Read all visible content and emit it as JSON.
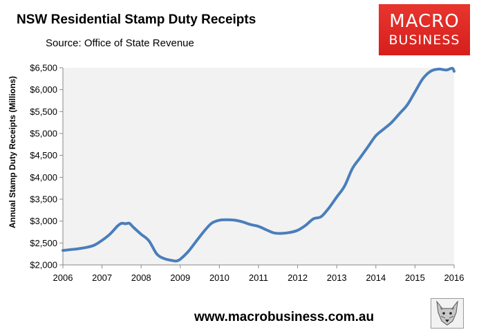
{
  "header": {
    "title": "NSW Residential Stamp Duty Receipts",
    "source": "Source: Office of State Revenue"
  },
  "logo": {
    "line1": "MACRO",
    "line2": "BUSINESS",
    "background": "#d92320"
  },
  "footer": {
    "url": "www.macrobusiness.com.au",
    "mascot_icon": "wolf-head-icon"
  },
  "chart_data": {
    "type": "line",
    "title": "NSW Residential Stamp Duty Receipts",
    "subtitle": "Source: Office of State Revenue",
    "xlabel": "",
    "ylabel": "Annual Stamp Duty Receipts (Millions)",
    "xlim": [
      2006,
      2016
    ],
    "ylim": [
      2000,
      6500
    ],
    "x_ticks": [
      "2006",
      "2007",
      "2008",
      "2009",
      "2010",
      "2011",
      "2012",
      "2013",
      "2014",
      "2015",
      "2016"
    ],
    "y_ticks": [
      "$2,000",
      "$2,500",
      "$3,000",
      "$3,500",
      "$4,000",
      "$4,500",
      "$5,000",
      "$5,500",
      "$6,000",
      "$6,500"
    ],
    "grid": false,
    "plot_background": "#f2f2f2",
    "line_color": "#4a7ebb",
    "series": [
      {
        "x": [
          2006.0,
          2006.2,
          2006.4,
          2006.6,
          2006.8,
          2007.0,
          2007.2,
          2007.4,
          2007.5,
          2007.6,
          2007.7,
          2007.8,
          2008.0,
          2008.2,
          2008.4,
          2008.6,
          2008.8,
          2008.9,
          2009.0,
          2009.2,
          2009.4,
          2009.6,
          2009.8,
          2010.0,
          2010.2,
          2010.4,
          2010.6,
          2010.8,
          2011.0,
          2011.2,
          2011.4,
          2011.6,
          2011.8,
          2012.0,
          2012.2,
          2012.4,
          2012.6,
          2012.8,
          2013.0,
          2013.2,
          2013.4,
          2013.6,
          2013.8,
          2014.0,
          2014.2,
          2014.4,
          2014.6,
          2014.8,
          2015.0,
          2015.2,
          2015.4,
          2015.6,
          2015.8,
          2015.95,
          2016.0
        ],
        "y": [
          2330,
          2350,
          2370,
          2400,
          2450,
          2560,
          2700,
          2890,
          2950,
          2940,
          2950,
          2860,
          2700,
          2550,
          2250,
          2140,
          2100,
          2090,
          2130,
          2300,
          2530,
          2760,
          2950,
          3020,
          3030,
          3020,
          2980,
          2920,
          2880,
          2800,
          2730,
          2720,
          2740,
          2790,
          2900,
          3050,
          3100,
          3300,
          3550,
          3800,
          4200,
          4450,
          4700,
          4950,
          5100,
          5250,
          5450,
          5650,
          5950,
          6250,
          6420,
          6470,
          6450,
          6490,
          6420
        ]
      }
    ]
  }
}
